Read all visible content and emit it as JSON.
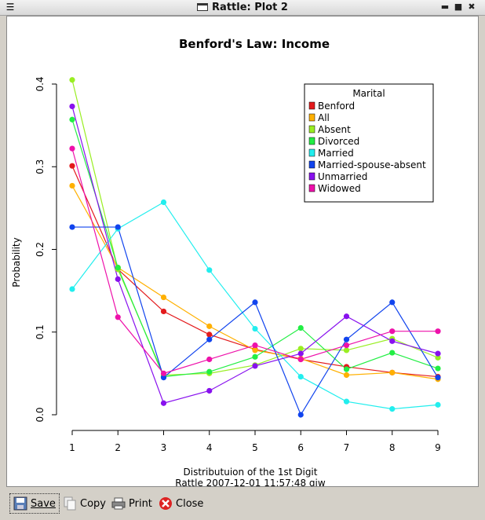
{
  "window": {
    "title": "Rattle: Plot 2",
    "menu_icon": "menu-icon",
    "controls": [
      "minimize-icon",
      "maximize-icon",
      "close-window-icon"
    ]
  },
  "chart_data": {
    "type": "line",
    "title": "Benford's Law: Income",
    "xlabel": "Distributuion of the 1st Digit",
    "footer": "Rattle 2007-12-01 11:57:48 gjw",
    "ylabel": "Probability",
    "x": [
      1,
      2,
      3,
      4,
      5,
      6,
      7,
      8,
      9
    ],
    "xlim": [
      1,
      9
    ],
    "ylim": [
      0,
      0.4
    ],
    "yticks": [
      "0.0",
      "0.1",
      "0.2",
      "0.3",
      "0.4"
    ],
    "xticks": [
      "1",
      "2",
      "3",
      "4",
      "5",
      "6",
      "7",
      "8",
      "9"
    ],
    "legend": {
      "title": "Marital",
      "position": "top-right"
    },
    "series": [
      {
        "name": "Benford",
        "color": "#e31a1c",
        "values": [
          0.301,
          0.176,
          0.125,
          0.097,
          0.079,
          0.067,
          0.058,
          0.051,
          0.046
        ]
      },
      {
        "name": "All",
        "color": "#ffb000",
        "values": [
          0.277,
          0.178,
          0.142,
          0.107,
          0.078,
          0.068,
          0.048,
          0.051,
          0.043
        ]
      },
      {
        "name": "Absent",
        "color": "#99ee22",
        "values": [
          0.405,
          0.176,
          0.048,
          0.05,
          0.06,
          0.08,
          0.078,
          0.092,
          0.069
        ]
      },
      {
        "name": "Divorced",
        "color": "#22ee44",
        "values": [
          0.357,
          0.178,
          0.046,
          0.052,
          0.07,
          0.105,
          0.055,
          0.075,
          0.056
        ]
      },
      {
        "name": "Married",
        "color": "#22eeee",
        "values": [
          0.152,
          0.225,
          0.257,
          0.175,
          0.104,
          0.046,
          0.016,
          0.007,
          0.012
        ]
      },
      {
        "name": "Married-spouse-absent",
        "color": "#1144ee",
        "values": [
          0.227,
          0.227,
          0.045,
          0.091,
          0.136,
          0.0,
          0.091,
          0.136,
          0.045
        ]
      },
      {
        "name": "Unmarried",
        "color": "#8811ee",
        "values": [
          0.373,
          0.164,
          0.014,
          0.029,
          0.059,
          0.074,
          0.119,
          0.089,
          0.074
        ]
      },
      {
        "name": "Widowed",
        "color": "#ee11aa",
        "values": [
          0.322,
          0.118,
          0.05,
          0.067,
          0.084,
          0.067,
          0.084,
          0.101,
          0.101
        ]
      }
    ]
  },
  "toolbar": {
    "save_label": "Save",
    "copy_label": "Copy",
    "print_label": "Print",
    "close_label": "Close"
  }
}
